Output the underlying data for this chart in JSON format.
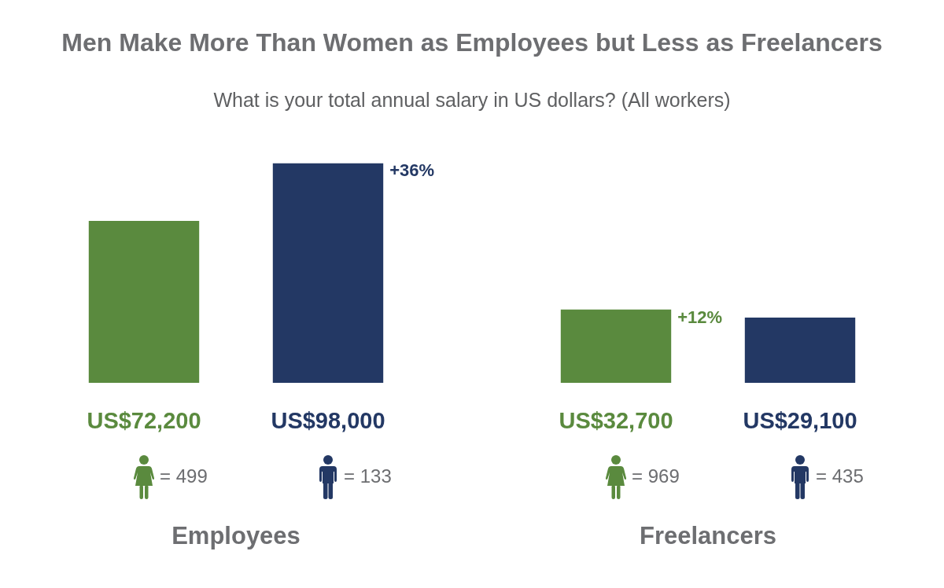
{
  "chart_data": {
    "type": "bar",
    "title": "Men Make More Than Women as Employees but Less as Freelancers",
    "subtitle": "What is your total annual salary in US dollars? (All workers)",
    "categories": [
      "Employees",
      "Freelancers"
    ],
    "series": [
      {
        "color": "#5a8a3e",
        "values": [
          72200,
          32700
        ],
        "value_labels": [
          "US$72,200",
          "US$32,700"
        ]
      },
      {
        "color": "#233864",
        "values": [
          98000,
          29100
        ],
        "value_labels": [
          "US$98,000",
          "US$29,100"
        ]
      }
    ],
    "ylim": [
      0,
      98000
    ],
    "tick_labels": "x",
    "annotations": [
      "+36%",
      "+12%",
      "= 499",
      "= 133",
      "= 969",
      "= 435"
    ]
  }
}
